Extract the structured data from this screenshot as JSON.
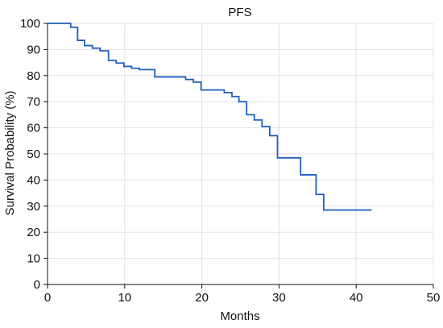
{
  "chart_data": {
    "type": "line",
    "title": "PFS",
    "xlabel": "Months",
    "ylabel": "Survival Probability (%)",
    "xlim": [
      0,
      50
    ],
    "ylim": [
      0,
      100
    ],
    "xticks": [
      0,
      10,
      20,
      30,
      40,
      50
    ],
    "yticks": [
      0,
      10,
      20,
      30,
      40,
      50,
      60,
      70,
      80,
      90,
      100
    ],
    "grid": true,
    "series": [
      {
        "step": true,
        "color": "#1f5fbf",
        "points": [
          [
            0,
            100
          ],
          [
            3.0,
            98.5
          ],
          [
            3.9,
            93.5
          ],
          [
            4.8,
            91.5
          ],
          [
            5.8,
            90.5
          ],
          [
            6.8,
            89.5
          ],
          [
            7.9,
            85.8
          ],
          [
            8.9,
            84.8
          ],
          [
            9.9,
            83.5
          ],
          [
            10.9,
            82.8
          ],
          [
            11.9,
            82.3
          ],
          [
            13.9,
            79.5
          ],
          [
            17.9,
            78.5
          ],
          [
            18.9,
            77.5
          ],
          [
            19.9,
            74.5
          ],
          [
            22.9,
            73.5
          ],
          [
            23.9,
            72.0
          ],
          [
            24.8,
            70.0
          ],
          [
            25.8,
            65.0
          ],
          [
            26.8,
            63.0
          ],
          [
            27.8,
            60.5
          ],
          [
            28.8,
            57.0
          ],
          [
            29.8,
            48.5
          ],
          [
            32.8,
            42.0
          ],
          [
            34.8,
            34.5
          ],
          [
            35.8,
            28.5
          ],
          [
            42.0,
            28.5
          ]
        ]
      }
    ]
  }
}
